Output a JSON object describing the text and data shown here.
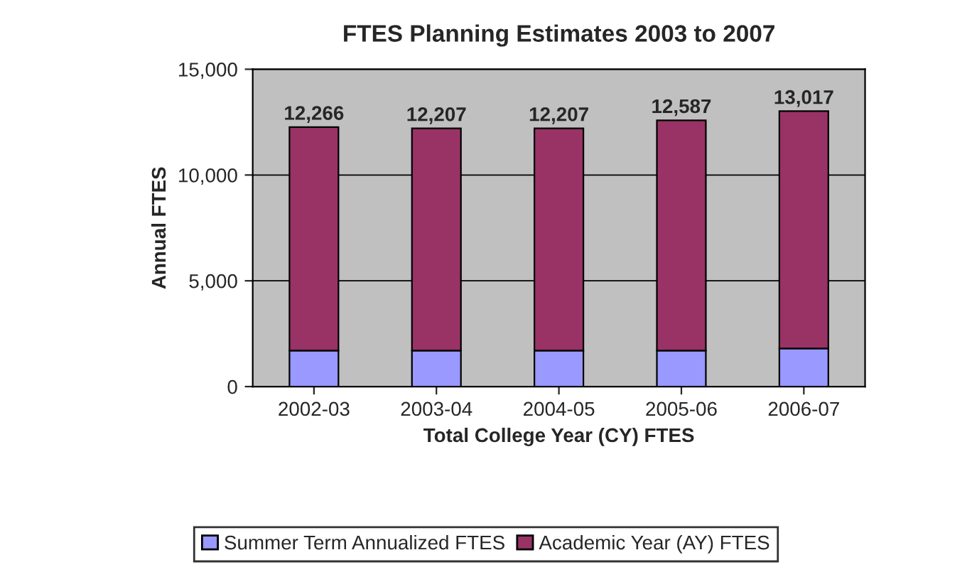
{
  "chart_data": {
    "type": "bar",
    "title": "FTES Planning Estimates 2003 to 2007",
    "xlabel": "Total College Year (CY) FTES",
    "ylabel": "Annual FTES",
    "categories": [
      "2002-03",
      "2003-04",
      "2004-05",
      "2005-06",
      "2006-07"
    ],
    "stacked": true,
    "series": [
      {
        "name": "Summer Term Annualized FTES",
        "color": "#9999ff",
        "values": [
          1700,
          1700,
          1700,
          1700,
          1800
        ]
      },
      {
        "name": "Academic Year (AY) FTES",
        "color": "#993366",
        "values": [
          10566,
          10507,
          10507,
          10887,
          11217
        ]
      }
    ],
    "totals": [
      "12,266",
      "12,207",
      "12,207",
      "12,587",
      "13,017"
    ],
    "ylim": [
      0,
      15000
    ],
    "yticks": [
      {
        "value": 0,
        "label": "0"
      },
      {
        "value": 5000,
        "label": "5,000"
      },
      {
        "value": 10000,
        "label": "10,000"
      },
      {
        "value": 15000,
        "label": "15,000"
      }
    ],
    "grid": "y",
    "legend": "bottom"
  }
}
